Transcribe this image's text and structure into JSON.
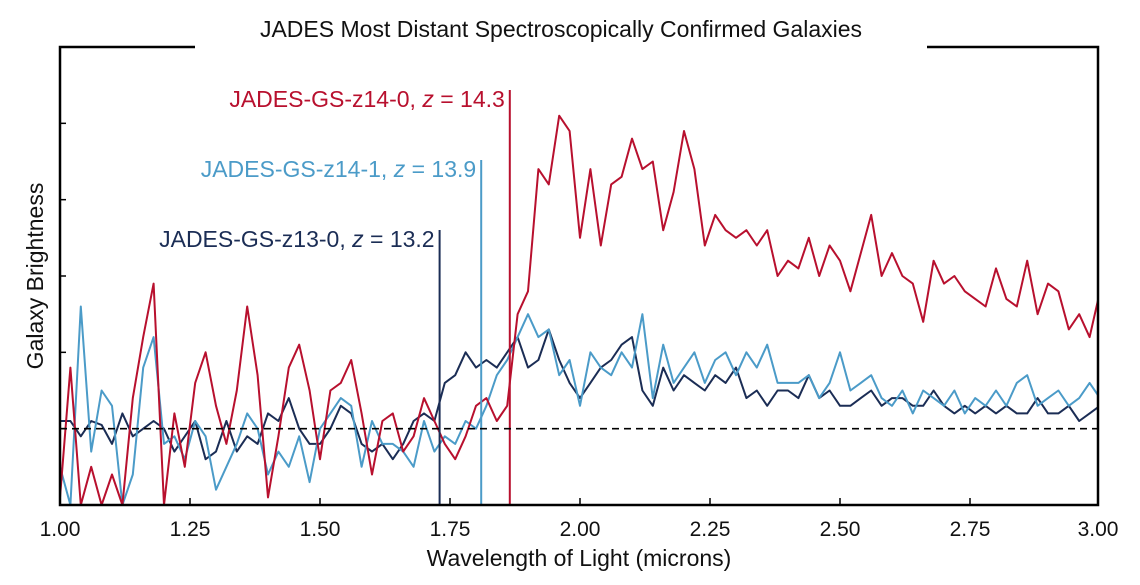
{
  "chart_data": {
    "type": "line",
    "title": "JADES Most Distant Spectroscopically Confirmed Galaxies",
    "xlabel": "Wavelength of Light (microns)",
    "ylabel": "Galaxy Brightness",
    "xlim": [
      1.0,
      3.0
    ],
    "ylim": [
      -1,
      5
    ],
    "x_ticks": [
      "1.00",
      "1.25",
      "1.50",
      "1.75",
      "2.00",
      "2.25",
      "2.50",
      "2.75",
      "3.00"
    ],
    "y_ticks_labeled": false,
    "zero_line": {
      "y": 0,
      "style": "dashed"
    },
    "grid": false,
    "x": [
      1.0,
      1.02,
      1.04,
      1.06,
      1.08,
      1.1,
      1.12,
      1.14,
      1.16,
      1.18,
      1.2,
      1.22,
      1.24,
      1.26,
      1.28,
      1.3,
      1.32,
      1.34,
      1.36,
      1.38,
      1.4,
      1.42,
      1.44,
      1.46,
      1.48,
      1.5,
      1.52,
      1.54,
      1.56,
      1.58,
      1.6,
      1.62,
      1.64,
      1.66,
      1.68,
      1.7,
      1.72,
      1.74,
      1.76,
      1.78,
      1.8,
      1.82,
      1.84,
      1.86,
      1.88,
      1.9,
      1.92,
      1.94,
      1.96,
      1.98,
      2.0,
      2.02,
      2.04,
      2.06,
      2.08,
      2.1,
      2.12,
      2.14,
      2.16,
      2.18,
      2.2,
      2.22,
      2.24,
      2.26,
      2.28,
      2.3,
      2.32,
      2.34,
      2.36,
      2.38,
      2.4,
      2.42,
      2.44,
      2.46,
      2.48,
      2.5,
      2.52,
      2.54,
      2.56,
      2.58,
      2.6,
      2.62,
      2.64,
      2.66,
      2.68,
      2.7,
      2.72,
      2.74,
      2.76,
      2.78,
      2.8,
      2.82,
      2.84,
      2.86,
      2.88,
      2.9,
      2.92,
      2.94,
      2.96,
      2.98,
      3.0
    ],
    "series": [
      {
        "label_name": "JADES-GS-z14-0, ",
        "label_z": "z",
        "label_value": " = 14.3",
        "color": "#b8102e",
        "break_wavelength": 1.865,
        "values": [
          -0.9,
          0.8,
          -1,
          -0.5,
          -1,
          -0.6,
          -1,
          0.4,
          1.2,
          1.9,
          -1,
          0.2,
          -0.5,
          0.6,
          1.0,
          0.3,
          -0.2,
          0.5,
          1.6,
          0.7,
          -0.9,
          -0.1,
          0.8,
          1.1,
          0.5,
          -0.4,
          0.5,
          0.6,
          0.9,
          0.2,
          -0.6,
          0.1,
          0.2,
          -0.3,
          -0.1,
          0.4,
          0.1,
          -0.2,
          -0.4,
          -0.1,
          0.3,
          0.4,
          0.1,
          0.3,
          1.5,
          1.8,
          3.4,
          3.2,
          4.1,
          3.9,
          2.5,
          3.4,
          2.4,
          3.2,
          3.3,
          3.8,
          3.4,
          3.5,
          2.6,
          3.1,
          3.9,
          3.4,
          2.4,
          2.8,
          2.6,
          2.5,
          2.6,
          2.4,
          2.6,
          2.0,
          2.2,
          2.1,
          2.5,
          2.0,
          2.4,
          2.2,
          1.8,
          2.3,
          2.8,
          2.0,
          2.3,
          2.0,
          1.9,
          1.4,
          2.2,
          1.9,
          2.0,
          1.8,
          1.7,
          1.6,
          2.1,
          1.7,
          1.6,
          2.2,
          1.5,
          1.9,
          1.8,
          1.3,
          1.5,
          1.2,
          1.8
        ]
      },
      {
        "label_name": "JADES-GS-z14-1, ",
        "label_z": "z",
        "label_value": " = 13.9",
        "color": "#4b9bc8",
        "break_wavelength": 1.81,
        "values": [
          -0.5,
          -1,
          1.6,
          -0.3,
          0.5,
          0.3,
          -1,
          -0.6,
          0.8,
          1.2,
          -0.2,
          -0.1,
          -0.4,
          0.1,
          -0.1,
          -0.8,
          -0.5,
          -0.2,
          0.2,
          0,
          -0.6,
          -0.3,
          -0.5,
          -0.1,
          -0.7,
          0,
          0.2,
          0.4,
          0.3,
          -0.5,
          0.1,
          -0.2,
          -0.2,
          -0.3,
          -0.5,
          0.1,
          -0.3,
          -0.1,
          -0.2,
          0.1,
          0.0,
          0.3,
          0.7,
          0.9,
          1.2,
          1.5,
          1.2,
          1.3,
          0.7,
          0.9,
          0.3,
          1.0,
          0.8,
          0.7,
          1.0,
          0.8,
          1.5,
          0.4,
          1.1,
          0.6,
          0.8,
          1.0,
          0.6,
          0.9,
          1.0,
          0.7,
          1.0,
          0.8,
          1.1,
          0.6,
          0.6,
          0.6,
          0.7,
          0.4,
          0.6,
          1.0,
          0.5,
          0.6,
          0.7,
          0.4,
          0.3,
          0.5,
          0.2,
          0.5,
          0.4,
          0.3,
          0.5,
          0.2,
          0.4,
          0.3,
          0.5,
          0.3,
          0.6,
          0.7,
          0.3,
          0.4,
          0.5,
          0.3,
          0.4,
          0.6,
          0.4
        ]
      },
      {
        "label_name": "JADES-GS-z13-0, ",
        "label_z": "z",
        "label_value": " = 13.2",
        "color": "#1b2d55",
        "break_wavelength": 1.73,
        "values": [
          0.1,
          0.1,
          -0.1,
          0.1,
          0.05,
          -0.2,
          0.2,
          -0.1,
          0,
          0.1,
          0,
          -0.3,
          -0.1,
          0.1,
          -0.4,
          -0.3,
          0.1,
          -0.3,
          -0.1,
          -0.2,
          0.2,
          0.1,
          0.4,
          0,
          -0.2,
          -0.2,
          0,
          0.3,
          0.2,
          -0.2,
          -0.3,
          -0.2,
          -0.4,
          -0.2,
          0.1,
          0.2,
          0.1,
          0.6,
          0.7,
          1.0,
          0.8,
          0.9,
          0.8,
          1.0,
          1.2,
          0.8,
          0.9,
          1.3,
          0.9,
          0.6,
          0.4,
          0.6,
          0.8,
          0.9,
          1.1,
          1.2,
          0.5,
          0.3,
          0.8,
          0.5,
          0.7,
          0.6,
          0.5,
          0.7,
          0.6,
          0.8,
          0.4,
          0.5,
          0.3,
          0.5,
          0.5,
          0.4,
          0.7,
          0.4,
          0.5,
          0.3,
          0.3,
          0.4,
          0.5,
          0.3,
          0.4,
          0.4,
          0.3,
          0.3,
          0.5,
          0.3,
          0.2,
          0.3,
          0.2,
          0.3,
          0.2,
          0.3,
          0.2,
          0.2,
          0.4,
          0.2,
          0.2,
          0.3,
          0.1,
          0.2,
          0.3
        ]
      }
    ]
  }
}
